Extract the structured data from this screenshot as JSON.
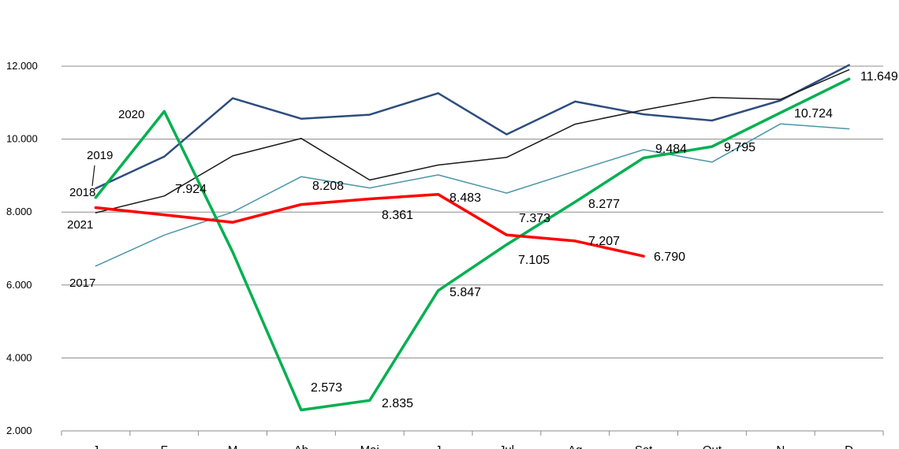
{
  "chart_data": {
    "type": "line",
    "title": "",
    "xlabel": "",
    "ylabel": "",
    "ylim": [
      2000,
      12000
    ],
    "yticks": [
      2000,
      4000,
      6000,
      8000,
      10000,
      12000
    ],
    "ytick_labels": [
      "2.000",
      "4.000",
      "6.000",
      "8.000",
      "10.000",
      "12.000"
    ],
    "grid": true,
    "legend": "none",
    "categories": [
      "Janeiro",
      "Fevereiro",
      "Março",
      "Abril",
      "Maio",
      "Junho",
      "Julho",
      "Agosto",
      "Setembro",
      "Outubro",
      "Novembro",
      "Dezembro"
    ],
    "category_labels_visible": [
      "J",
      "F",
      "M",
      "Ab",
      "Mai",
      "J",
      "Jul",
      "Ag",
      "Set",
      "Out",
      "N",
      "D"
    ],
    "series": [
      {
        "name": "2017",
        "color": "#4a96a8",
        "width": 1.5,
        "values": [
          6520,
          7370,
          8000,
          8970,
          8660,
          9020,
          8520,
          9120,
          9710,
          9370,
          10420,
          10280
        ]
      },
      {
        "name": "2018",
        "color": "#2e4d7e",
        "width": 2.5,
        "values": [
          8650,
          9520,
          11120,
          10560,
          10670,
          11260,
          10130,
          11030,
          10680,
          10510,
          11060,
          12030
        ]
      },
      {
        "name": "2019",
        "color": "#1a1a1a",
        "width": 1.5,
        "values": [
          7980,
          8440,
          9540,
          10020,
          8880,
          9290,
          9500,
          10410,
          10800,
          11140,
          11090,
          11900
        ]
      },
      {
        "name": "2020",
        "color": "#00b050",
        "width": 3.5,
        "values": [
          8400,
          10760,
          6900,
          2573,
          2835,
          5847,
          7105,
          8277,
          9484,
          9795,
          10724,
          11649
        ]
      },
      {
        "name": "2021",
        "color": "#ff0000",
        "width": 3.5,
        "values": [
          8120,
          7924,
          7720,
          8208,
          8361,
          8483,
          7373,
          7207,
          6790,
          null,
          null,
          null
        ]
      }
    ],
    "data_labels": [
      {
        "text": "7.924"
      },
      {
        "text": "8.208"
      },
      {
        "text": "8.361"
      },
      {
        "text": "8.483"
      },
      {
        "text": "7.373"
      },
      {
        "text": "7.207"
      },
      {
        "text": "6.790"
      },
      {
        "text": "2.573"
      },
      {
        "text": "2.835"
      },
      {
        "text": "5.847"
      },
      {
        "text": "7.105"
      },
      {
        "text": "8.277"
      },
      {
        "text": "9.484"
      },
      {
        "text": "9.795"
      },
      {
        "text": "10.724"
      },
      {
        "text": "11.649"
      }
    ],
    "series_labels": [
      {
        "text": "2020"
      },
      {
        "text": "2019"
      },
      {
        "text": "2018"
      },
      {
        "text": "2021"
      },
      {
        "text": "2017"
      }
    ]
  }
}
